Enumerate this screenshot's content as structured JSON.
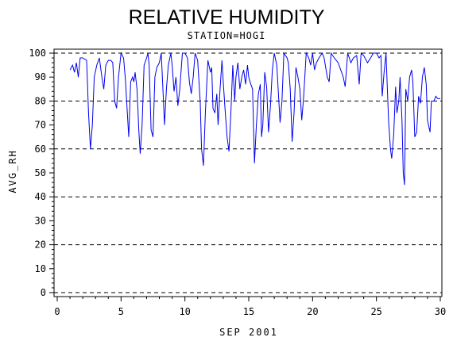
{
  "chart_data": {
    "type": "line",
    "title": "RELATIVE HUMIDITY",
    "subtitle": "STATION=HOGI",
    "xlabel": "SEP 2001",
    "ylabel": "AVG_RH",
    "xlim": [
      0,
      30
    ],
    "ylim": [
      0,
      100
    ],
    "x_ticks": [
      0,
      5,
      10,
      15,
      20,
      25,
      30
    ],
    "y_ticks": [
      0,
      10,
      20,
      30,
      40,
      50,
      60,
      70,
      80,
      90,
      100
    ],
    "grid": "dashed horizontal lines at 0, 20, 40, 60, 80, 100",
    "line_color": "#0000ee",
    "series": [
      {
        "points": [
          [
            1.0,
            93
          ],
          [
            1.2,
            95
          ],
          [
            1.35,
            92
          ],
          [
            1.5,
            96
          ],
          [
            1.65,
            90
          ],
          [
            1.8,
            98
          ],
          [
            2.0,
            98
          ],
          [
            2.3,
            97
          ],
          [
            2.45,
            75
          ],
          [
            2.6,
            60
          ],
          [
            2.75,
            70
          ],
          [
            2.9,
            90
          ],
          [
            3.1,
            95
          ],
          [
            3.3,
            98
          ],
          [
            3.5,
            90
          ],
          [
            3.65,
            85
          ],
          [
            3.8,
            95
          ],
          [
            4.0,
            97
          ],
          [
            4.2,
            97
          ],
          [
            4.35,
            96
          ],
          [
            4.5,
            80
          ],
          [
            4.65,
            77
          ],
          [
            4.8,
            90
          ],
          [
            5.0,
            100
          ],
          [
            5.2,
            98
          ],
          [
            5.35,
            88
          ],
          [
            5.5,
            74
          ],
          [
            5.6,
            65
          ],
          [
            5.75,
            88
          ],
          [
            5.9,
            90
          ],
          [
            6.0,
            88
          ],
          [
            6.1,
            92
          ],
          [
            6.25,
            85
          ],
          [
            6.4,
            67
          ],
          [
            6.5,
            58
          ],
          [
            6.65,
            70
          ],
          [
            6.8,
            95
          ],
          [
            7.0,
            98
          ],
          [
            7.1,
            100
          ],
          [
            7.2,
            95
          ],
          [
            7.35,
            68
          ],
          [
            7.5,
            65
          ],
          [
            7.65,
            90
          ],
          [
            7.8,
            94
          ],
          [
            8.0,
            96
          ],
          [
            8.15,
            100
          ],
          [
            8.3,
            82
          ],
          [
            8.4,
            70
          ],
          [
            8.55,
            85
          ],
          [
            8.7,
            95
          ],
          [
            8.9,
            100
          ],
          [
            9.0,
            95
          ],
          [
            9.15,
            84
          ],
          [
            9.3,
            90
          ],
          [
            9.45,
            78
          ],
          [
            9.6,
            85
          ],
          [
            9.8,
            100
          ],
          [
            10.0,
            100
          ],
          [
            10.2,
            98
          ],
          [
            10.35,
            88
          ],
          [
            10.5,
            83
          ],
          [
            10.65,
            90
          ],
          [
            10.8,
            100
          ],
          [
            11.0,
            97
          ],
          [
            11.2,
            80
          ],
          [
            11.3,
            60
          ],
          [
            11.45,
            53
          ],
          [
            11.6,
            75
          ],
          [
            11.8,
            97
          ],
          [
            12.0,
            92
          ],
          [
            12.1,
            94
          ],
          [
            12.2,
            77
          ],
          [
            12.35,
            75
          ],
          [
            12.5,
            83
          ],
          [
            12.6,
            70
          ],
          [
            12.75,
            85
          ],
          [
            12.9,
            97
          ],
          [
            13.0,
            88
          ],
          [
            13.15,
            76
          ],
          [
            13.3,
            65
          ],
          [
            13.45,
            59
          ],
          [
            13.6,
            75
          ],
          [
            13.75,
            95
          ],
          [
            13.9,
            80
          ],
          [
            14.0,
            90
          ],
          [
            14.15,
            96
          ],
          [
            14.3,
            85
          ],
          [
            14.45,
            90
          ],
          [
            14.6,
            93
          ],
          [
            14.75,
            87
          ],
          [
            14.9,
            95
          ],
          [
            15.0,
            90
          ],
          [
            15.1,
            88
          ],
          [
            15.3,
            85
          ],
          [
            15.45,
            54
          ],
          [
            15.6,
            70
          ],
          [
            15.75,
            83
          ],
          [
            15.9,
            87
          ],
          [
            16.0,
            65
          ],
          [
            16.1,
            70
          ],
          [
            16.25,
            92
          ],
          [
            16.4,
            86
          ],
          [
            16.55,
            67
          ],
          [
            16.7,
            78
          ],
          [
            16.85,
            93
          ],
          [
            17.0,
            100
          ],
          [
            17.2,
            95
          ],
          [
            17.3,
            85
          ],
          [
            17.45,
            71
          ],
          [
            17.6,
            80
          ],
          [
            17.75,
            100
          ],
          [
            18.0,
            98
          ],
          [
            18.1,
            96
          ],
          [
            18.25,
            85
          ],
          [
            18.4,
            63
          ],
          [
            18.55,
            75
          ],
          [
            18.7,
            94
          ],
          [
            18.85,
            90
          ],
          [
            19.0,
            85
          ],
          [
            19.15,
            72
          ],
          [
            19.3,
            82
          ],
          [
            19.5,
            100
          ],
          [
            19.7,
            98
          ],
          [
            19.85,
            95
          ],
          [
            20.0,
            100
          ],
          [
            20.15,
            93
          ],
          [
            20.3,
            96
          ],
          [
            20.5,
            98
          ],
          [
            20.75,
            100
          ],
          [
            20.9,
            98
          ],
          [
            21.15,
            90
          ],
          [
            21.3,
            88
          ],
          [
            21.45,
            100
          ],
          [
            21.7,
            98
          ],
          [
            22.0,
            96
          ],
          [
            22.2,
            93
          ],
          [
            22.4,
            90
          ],
          [
            22.55,
            86
          ],
          [
            22.75,
            100
          ],
          [
            23.0,
            96
          ],
          [
            23.2,
            98
          ],
          [
            23.45,
            99
          ],
          [
            23.65,
            87
          ],
          [
            23.8,
            100
          ],
          [
            24.0,
            99
          ],
          [
            24.3,
            96
          ],
          [
            24.55,
            98
          ],
          [
            24.75,
            100
          ],
          [
            25.0,
            100
          ],
          [
            25.2,
            98
          ],
          [
            25.35,
            99
          ],
          [
            25.45,
            82
          ],
          [
            25.6,
            92
          ],
          [
            25.75,
            100
          ],
          [
            25.95,
            72
          ],
          [
            26.1,
            60
          ],
          [
            26.2,
            56
          ],
          [
            26.35,
            66
          ],
          [
            26.5,
            86
          ],
          [
            26.6,
            75
          ],
          [
            26.75,
            80
          ],
          [
            26.85,
            90
          ],
          [
            27.0,
            72
          ],
          [
            27.1,
            50
          ],
          [
            27.2,
            45
          ],
          [
            27.3,
            85
          ],
          [
            27.45,
            80
          ],
          [
            27.6,
            90
          ],
          [
            27.75,
            93
          ],
          [
            27.85,
            88
          ],
          [
            28.0,
            65
          ],
          [
            28.15,
            67
          ],
          [
            28.3,
            82
          ],
          [
            28.45,
            79
          ],
          [
            28.6,
            90
          ],
          [
            28.75,
            94
          ],
          [
            28.9,
            87
          ],
          [
            29.0,
            72
          ],
          [
            29.2,
            67
          ],
          [
            29.3,
            80
          ],
          [
            29.5,
            80
          ],
          [
            29.65,
            82
          ],
          [
            29.8,
            81
          ],
          [
            30.0,
            81
          ]
        ]
      }
    ]
  }
}
